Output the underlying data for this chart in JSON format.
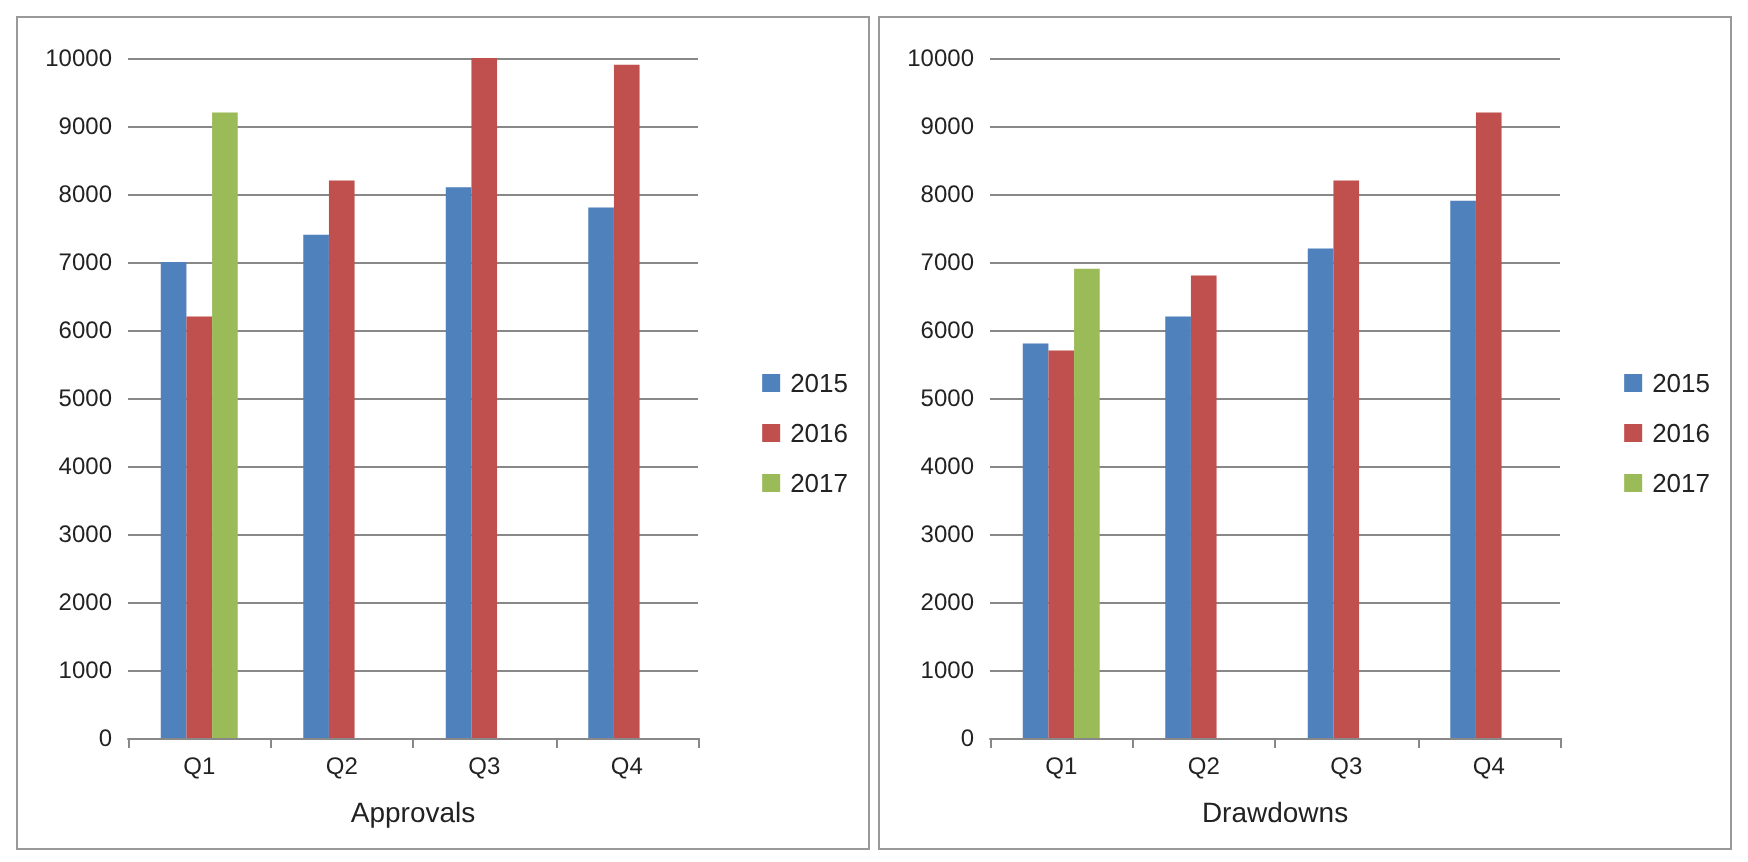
{
  "chart_data": [
    {
      "type": "bar",
      "xlabel": "Approvals",
      "categories": [
        "Q1",
        "Q2",
        "Q3",
        "Q4"
      ],
      "series": [
        {
          "name": "2015",
          "color": "#4f81bd",
          "values": [
            7000,
            7400,
            8100,
            7800
          ]
        },
        {
          "name": "2016",
          "color": "#c0504d",
          "values": [
            6200,
            8200,
            10000,
            9900
          ]
        },
        {
          "name": "2017",
          "color": "#9bbb59",
          "values": [
            9200,
            null,
            null,
            null
          ]
        }
      ],
      "ylim": [
        0,
        10000
      ],
      "yticks": [
        0,
        1000,
        2000,
        3000,
        4000,
        5000,
        6000,
        7000,
        8000,
        9000,
        10000
      ],
      "grid": "y",
      "legend": "right"
    },
    {
      "type": "bar",
      "xlabel": "Drawdowns",
      "categories": [
        "Q1",
        "Q2",
        "Q3",
        "Q4"
      ],
      "series": [
        {
          "name": "2015",
          "color": "#4f81bd",
          "values": [
            5800,
            6200,
            7200,
            7900
          ]
        },
        {
          "name": "2016",
          "color": "#c0504d",
          "values": [
            5700,
            6800,
            8200,
            9200
          ]
        },
        {
          "name": "2017",
          "color": "#9bbb59",
          "values": [
            6900,
            null,
            null,
            null
          ]
        }
      ],
      "ylim": [
        0,
        10000
      ],
      "yticks": [
        0,
        1000,
        2000,
        3000,
        4000,
        5000,
        6000,
        7000,
        8000,
        9000,
        10000
      ],
      "grid": "y",
      "legend": "right"
    }
  ]
}
